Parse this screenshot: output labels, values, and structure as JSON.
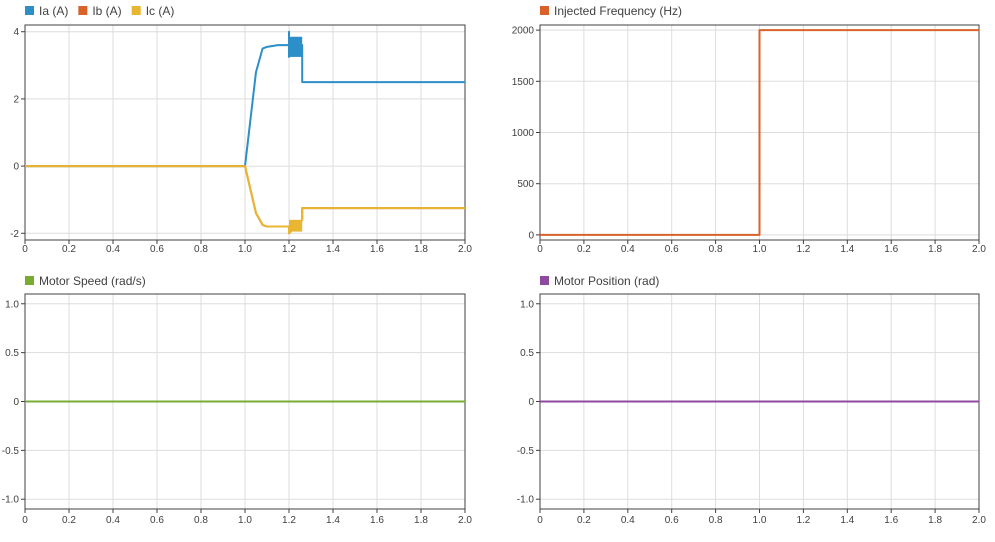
{
  "chart_data": [
    {
      "type": "line",
      "title": "",
      "xlabel": "",
      "ylabel": "",
      "xlim": [
        0,
        2.0
      ],
      "ylim": [
        -2.2,
        4.2
      ],
      "xticks": [
        "0",
        "0.2",
        "0.4",
        "0.6",
        "0.8",
        "1.0",
        "1.2",
        "1.4",
        "1.6",
        "1.8",
        "2.0"
      ],
      "yticks": [
        "4",
        "2",
        "0",
        "-2"
      ],
      "ytick_values": [
        4,
        2,
        0,
        -2
      ],
      "grid": true,
      "legend_position": "top-left",
      "series": [
        {
          "name": "Ia (A)",
          "color": "#2d8fc8",
          "x": [
            0,
            1.0,
            1.05,
            1.08,
            1.1,
            1.15,
            1.2,
            1.2,
            1.2,
            1.26,
            1.26,
            2.0
          ],
          "y": [
            0,
            0,
            2.8,
            3.5,
            3.55,
            3.6,
            3.6,
            4.0,
            3.25,
            3.6,
            2.5,
            2.5
          ]
        },
        {
          "name": "Ib (A)",
          "color": "#d9622b",
          "x": [
            0,
            1.0,
            1.05,
            1.08,
            1.1,
            1.15,
            1.2,
            1.2,
            1.26,
            1.26,
            2.0
          ],
          "y": [
            0,
            0,
            -1.4,
            -1.75,
            -1.8,
            -1.8,
            -1.8,
            -2.0,
            -1.6,
            -1.25,
            -1.25
          ]
        },
        {
          "name": "Ic (A)",
          "color": "#e8b631",
          "x": [
            0,
            1.0,
            1.05,
            1.08,
            1.1,
            1.15,
            1.2,
            1.2,
            1.26,
            1.26,
            2.0
          ],
          "y": [
            0,
            0,
            -1.4,
            -1.75,
            -1.8,
            -1.8,
            -1.8,
            -2.0,
            -1.6,
            -1.25,
            -1.25
          ]
        }
      ],
      "bands": [
        {
          "series": "Ia (A)",
          "color": "#2d8fc8",
          "x": [
            1.2,
            1.26
          ],
          "y": [
            3.25,
            3.85
          ]
        },
        {
          "series": "Ic (A)",
          "color": "#e8b631",
          "x": [
            1.2,
            1.26
          ],
          "y": [
            -1.95,
            -1.6
          ]
        }
      ]
    },
    {
      "type": "line",
      "title": "",
      "xlabel": "",
      "ylabel": "",
      "xlim": [
        0,
        2.0
      ],
      "ylim": [
        -50,
        2050
      ],
      "xticks": [
        "0",
        "0.2",
        "0.4",
        "0.6",
        "0.8",
        "1.0",
        "1.2",
        "1.4",
        "1.6",
        "1.8",
        "2.0"
      ],
      "yticks": [
        "2000",
        "1500",
        "1000",
        "500",
        "0"
      ],
      "ytick_values": [
        2000,
        1500,
        1000,
        500,
        0
      ],
      "grid": true,
      "legend_position": "top-left",
      "series": [
        {
          "name": "Injected Frequency (Hz)",
          "color": "#d9622b",
          "x": [
            0,
            1.0,
            1.0,
            2.0
          ],
          "y": [
            0,
            0,
            2000,
            2000
          ]
        }
      ]
    },
    {
      "type": "line",
      "title": "",
      "xlabel": "",
      "ylabel": "",
      "xlim": [
        0,
        2.0
      ],
      "ylim": [
        -1.1,
        1.1
      ],
      "xticks": [
        "0",
        "0.2",
        "0.4",
        "0.6",
        "0.8",
        "1.0",
        "1.2",
        "1.4",
        "1.6",
        "1.8",
        "2.0"
      ],
      "yticks": [
        "1.0",
        "0.5",
        "0",
        "-0.5",
        "-1.0"
      ],
      "ytick_values": [
        1.0,
        0.5,
        0,
        -0.5,
        -1.0
      ],
      "grid": true,
      "legend_position": "top-left",
      "series": [
        {
          "name": "Motor Speed (rad/s)",
          "color": "#77ac30",
          "x": [
            0,
            2.0
          ],
          "y": [
            0,
            0
          ]
        }
      ]
    },
    {
      "type": "line",
      "title": "",
      "xlabel": "",
      "ylabel": "",
      "xlim": [
        0,
        2.0
      ],
      "ylim": [
        -1.1,
        1.1
      ],
      "xticks": [
        "0",
        "0.2",
        "0.4",
        "0.6",
        "0.8",
        "1.0",
        "1.2",
        "1.4",
        "1.6",
        "1.8",
        "2.0"
      ],
      "yticks": [
        "1.0",
        "0.5",
        "0",
        "-0.5",
        "-1.0"
      ],
      "ytick_values": [
        1.0,
        0.5,
        0,
        -0.5,
        -1.0
      ],
      "grid": true,
      "legend_position": "top-left",
      "series": [
        {
          "name": "Motor Position (rad)",
          "color": "#8e4a9e",
          "x": [
            0,
            2.0
          ],
          "y": [
            0,
            0
          ]
        }
      ]
    }
  ]
}
